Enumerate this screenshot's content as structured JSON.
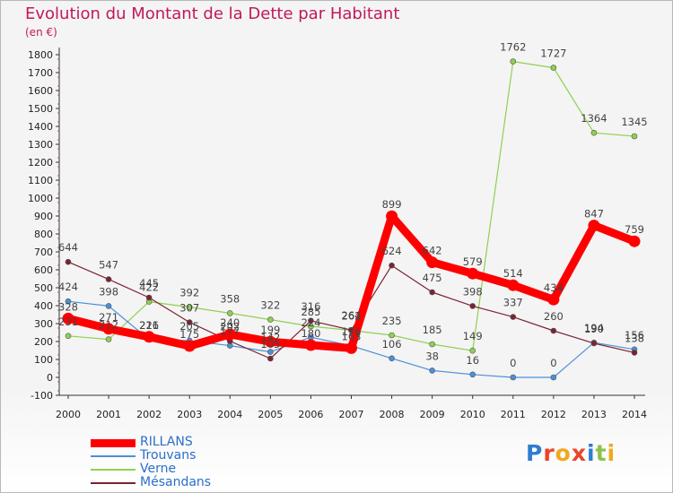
{
  "header": {
    "title": "Evolution du Montant de la Dette par Habitant",
    "unit": "(en €)"
  },
  "chart_data": {
    "type": "line",
    "title": "Evolution du Montant de la Dette par Habitant",
    "ylabel": "(en €)",
    "x": [
      "2000",
      "2001",
      "2002",
      "2003",
      "2004",
      "2005",
      "2006",
      "2007",
      "2008",
      "2009",
      "2010",
      "2011",
      "2012",
      "2013",
      "2014"
    ],
    "ylim": [
      -100,
      1800
    ],
    "yticks": [
      -100,
      0,
      100,
      200,
      300,
      400,
      500,
      600,
      700,
      800,
      900,
      1000,
      1100,
      1200,
      1300,
      1400,
      1500,
      1600,
      1700,
      1800
    ],
    "grid": false,
    "legend_position": "bottom-left",
    "series": [
      {
        "name": "RILLANS",
        "color": "#ff0000",
        "values": [
          328,
          271,
          226,
          175,
          240,
          199,
          180,
          163,
          899,
          642,
          579,
          514,
          434,
          847,
          759
        ],
        "labels": [
          "328",
          "271",
          "226",
          "175",
          "240",
          "199",
          "180",
          "163",
          "899",
          "642",
          "579",
          "514",
          "434",
          "847",
          "759"
        ]
      },
      {
        "name": "Trouvans",
        "color": "#4a90d9",
        "values": [
          424,
          398,
          211,
          205,
          177,
          142,
          224,
          176,
          106,
          38,
          16,
          0,
          0,
          194,
          156
        ],
        "labels": [
          "424",
          "398",
          "211",
          "205",
          "177",
          "142",
          "224",
          "176",
          "106",
          "38",
          "16",
          "0",
          "0",
          "194",
          "156"
        ]
      },
      {
        "name": "Verne",
        "color": "#8fd14f",
        "values": [
          231,
          212,
          422,
          392,
          358,
          322,
          285,
          262,
          235,
          185,
          149,
          1762,
          1727,
          1364,
          1345
        ],
        "labels": [
          "231",
          "212",
          "422",
          "392",
          "358",
          "322",
          "285",
          "262",
          "235",
          "185",
          "149",
          "1762",
          "1727",
          "1364",
          "1345"
        ]
      },
      {
        "name": "Mésandans",
        "color": "#7b2332",
        "values": [
          644,
          547,
          445,
          307,
          202,
          105,
          316,
          264,
          624,
          475,
          398,
          337,
          260,
          190,
          138
        ],
        "labels": [
          "644",
          "547",
          "445",
          "307",
          "202",
          "105",
          "316",
          "264",
          "624",
          "475",
          "398",
          "337",
          "260",
          "190",
          "138"
        ]
      }
    ]
  },
  "logo": {
    "text": "Proxiti",
    "letter_colors": [
      "#2e7dd1",
      "#e8452c",
      "#f2a81d",
      "#e8452c",
      "#2e7dd1",
      "#8bc34a",
      "#f2a81d"
    ]
  }
}
